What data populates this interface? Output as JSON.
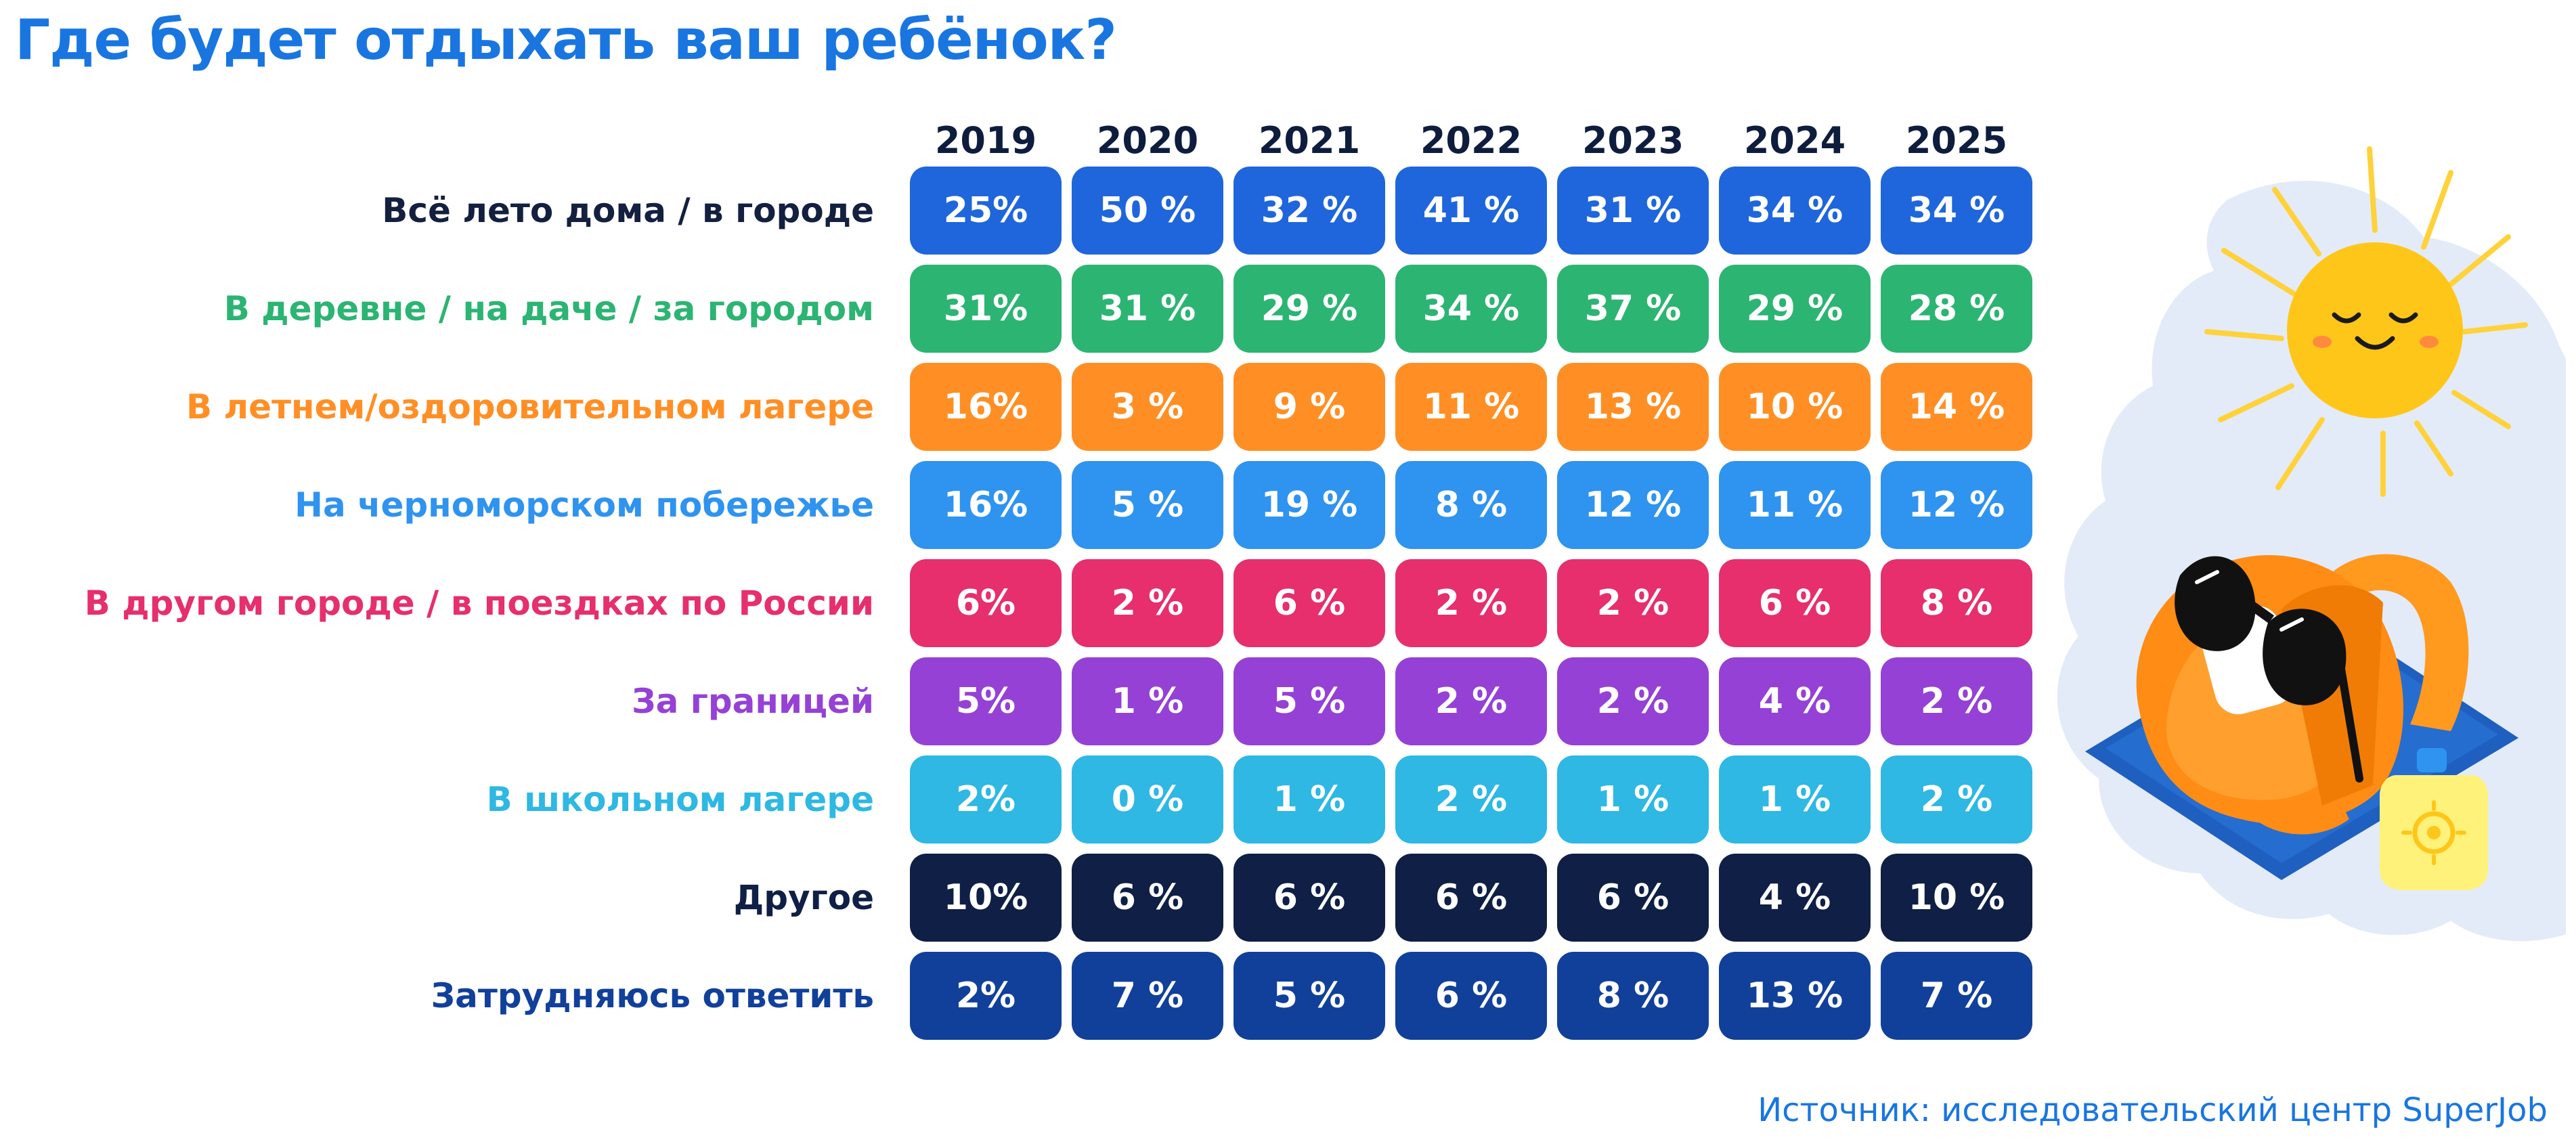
{
  "title": "Где будет отдыхать ваш ребёнок?",
  "source": "Источник: исследовательский центр SuperJob",
  "illustration": {
    "sun_icon": "smiling-sun-icon",
    "backpack_icon": "backpack-with-sunglasses-icon",
    "sunscreen_icon": "sunscreen-bottle-icon",
    "towel_icon": "beach-towel-icon"
  },
  "chart_data": {
    "type": "table",
    "title": "Где будет отдыхать ваш ребёнок?",
    "columns": [
      "2019",
      "2020",
      "2021",
      "2022",
      "2023",
      "2024",
      "2025"
    ],
    "rows": [
      {
        "label": "Всё лето дома / в городе",
        "color": "#1f66dc",
        "label_color": "#13203f",
        "cells": [
          "25%",
          "50 %",
          "32 %",
          "41 %",
          "31 %",
          "34 %",
          "34 %"
        ],
        "values": [
          25,
          50,
          32,
          41,
          31,
          34,
          34
        ]
      },
      {
        "label": "В деревне / на даче / за городом",
        "color": "#2cb473",
        "label_color": "#2cb473",
        "cells": [
          "31%",
          "31 %",
          "29 %",
          "34 %",
          "37 %",
          "29 %",
          "28 %"
        ],
        "values": [
          31,
          31,
          29,
          34,
          37,
          29,
          28
        ]
      },
      {
        "label": "В летнем/оздоровительном лагере",
        "color": "#ff8f25",
        "label_color": "#ff8f25",
        "cells": [
          "16%",
          "3 %",
          "9 %",
          "11 %",
          "13 %",
          "10 %",
          "14 %"
        ],
        "values": [
          16,
          3,
          9,
          11,
          13,
          10,
          14
        ]
      },
      {
        "label": "На черноморском побережье",
        "color": "#2f93f0",
        "label_color": "#2f93f0",
        "cells": [
          "16%",
          "5 %",
          "19 %",
          "8 %",
          "12 %",
          "11 %",
          "12 %"
        ],
        "values": [
          16,
          5,
          19,
          8,
          12,
          11,
          12
        ]
      },
      {
        "label": "В другом городе / в поездках по России",
        "color": "#e62f6c",
        "label_color": "#e62f6c",
        "cells": [
          "6%",
          "2 %",
          "6 %",
          "2 %",
          "2 %",
          "6 %",
          "8 %"
        ],
        "values": [
          6,
          2,
          6,
          2,
          2,
          6,
          8
        ]
      },
      {
        "label": "За границей",
        "color": "#9541d6",
        "label_color": "#9541d6",
        "cells": [
          "5%",
          "1 %",
          "5 %",
          "2 %",
          "2 %",
          "4 %",
          "2 %"
        ],
        "values": [
          5,
          1,
          5,
          2,
          2,
          4,
          2
        ]
      },
      {
        "label": "В школьном лагере",
        "color": "#2eb8e3",
        "label_color": "#2eb8e3",
        "cells": [
          "2%",
          "0 %",
          "1 %",
          "2 %",
          "1 %",
          "1 %",
          "2 %"
        ],
        "values": [
          2,
          0,
          1,
          2,
          1,
          1,
          2
        ]
      },
      {
        "label": "Другое",
        "color": "#0f1f45",
        "label_color": "#0f1f45",
        "cells": [
          "10%",
          "6 %",
          "6 %",
          "6 %",
          "6 %",
          "4 %",
          "10 %"
        ],
        "values": [
          10,
          6,
          6,
          6,
          6,
          4,
          10
        ]
      },
      {
        "label": "Затрудняюсь ответить",
        "color": "#11409b",
        "label_color": "#11409b",
        "cells": [
          "2%",
          "7 %",
          "5 %",
          "6 %",
          "8 %",
          "13 %",
          "7 %"
        ],
        "values": [
          2,
          7,
          5,
          6,
          8,
          13,
          7
        ]
      }
    ]
  }
}
